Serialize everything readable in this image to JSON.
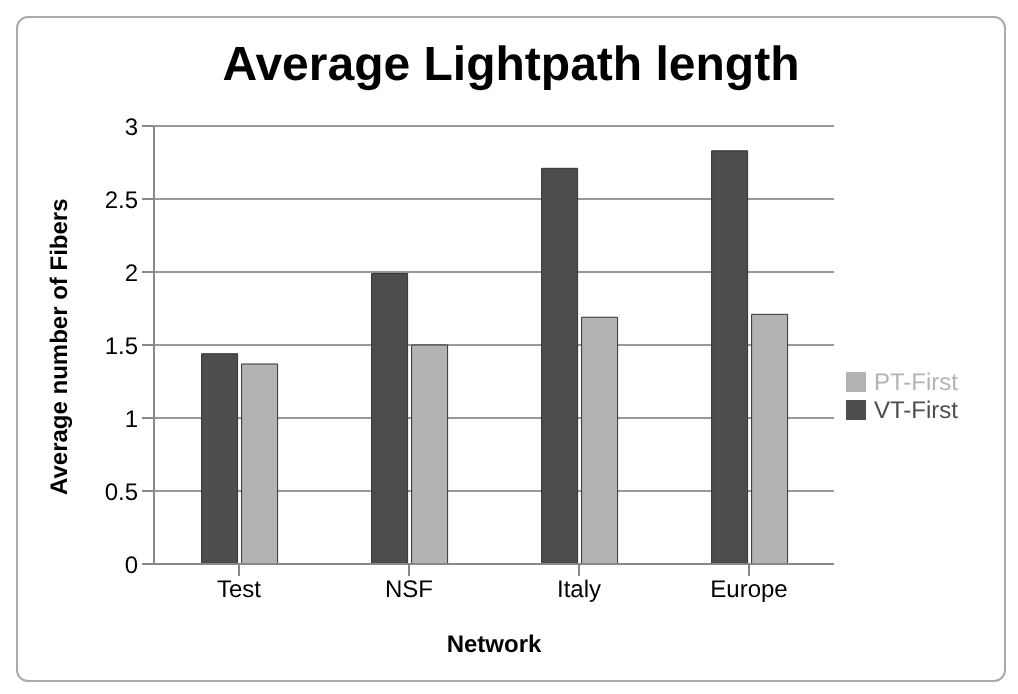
{
  "chart_data": {
    "type": "bar",
    "title": "Average Lightpath length",
    "xlabel": "Network",
    "ylabel": "Average number of Fibers",
    "categories": [
      "Test",
      "NSF",
      "Italy",
      "Europe"
    ],
    "series": [
      {
        "name": "VT-First",
        "color": "#4d4d4d",
        "values": [
          1.44,
          1.99,
          2.71,
          2.83
        ]
      },
      {
        "name": "PT-First",
        "color": "#b3b3b3",
        "values": [
          1.37,
          1.5,
          1.69,
          1.71
        ]
      }
    ],
    "ylim": [
      0,
      3
    ],
    "yticks": [
      0,
      0.5,
      1,
      1.5,
      2,
      2.5,
      3
    ],
    "grid": "y",
    "legend": "right"
  }
}
